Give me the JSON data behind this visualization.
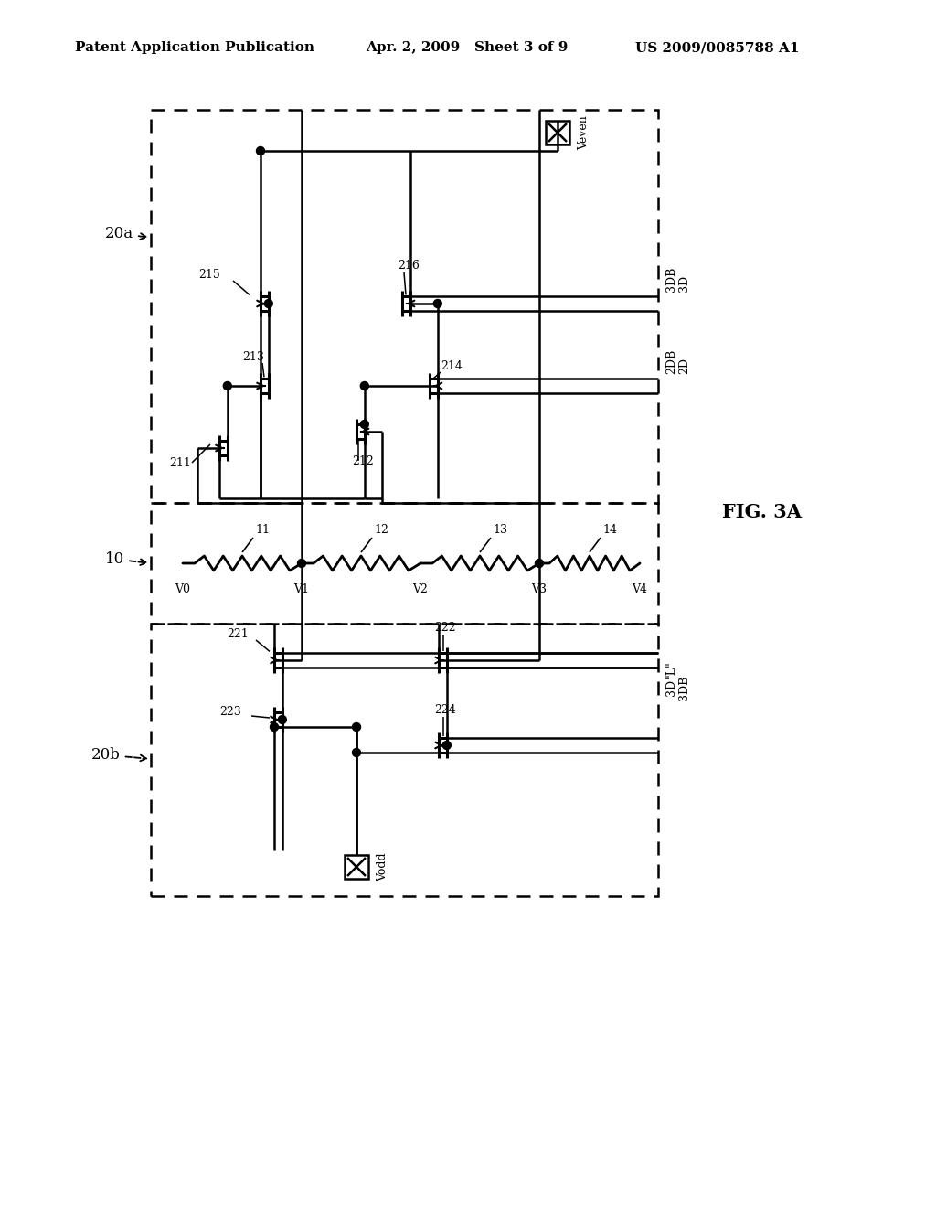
{
  "bg_color": "#ffffff",
  "header_left": "Patent Application Publication",
  "header_mid": "Apr. 2, 2009   Sheet 3 of 9",
  "header_right": "US 2009/0085788 A1",
  "fig_label": "FIG. 3A"
}
